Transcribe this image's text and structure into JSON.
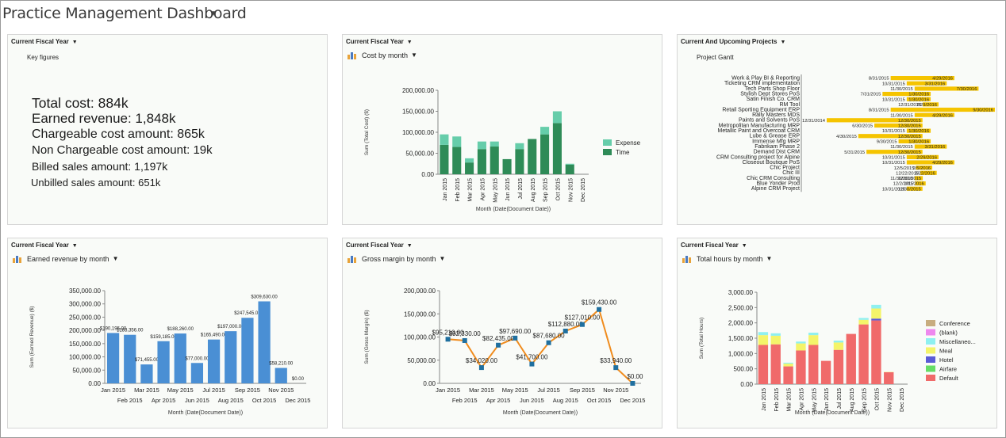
{
  "page": {
    "title": "Practice Management Dashboard"
  },
  "key_figures": {
    "filter": "Current Fiscal Year",
    "subtitle": "Key figures",
    "lines": [
      "Total cost: 884k",
      "Earned revenue: 1,848k",
      "Chargeable cost amount: 865k",
      "Non Chargeable cost amount: 19k",
      "Billed sales amount: 1,197k",
      "Unbilled sales amount: 651k"
    ]
  },
  "cost_panel": {
    "filter": "Current Fiscal Year",
    "subtitle": "Cost by month"
  },
  "gantt_panel": {
    "filter": "Current And Upcoming Projects",
    "subtitle": "Project Gantt"
  },
  "revenue_panel": {
    "filter": "Current Fiscal Year",
    "subtitle": "Earned revenue by month"
  },
  "margin_panel": {
    "filter": "Current Fiscal Year",
    "subtitle": "Gross margin by month"
  },
  "hours_panel": {
    "filter": "Current Fiscal Year",
    "subtitle": "Total hours by month"
  },
  "chart_data": [
    {
      "id": "cost",
      "type": "bar",
      "stacked": true,
      "ylabel": "Sum (Total Cost) ($)",
      "xlabel": "Month (Date(Document Date))",
      "ylim": [
        0,
        200000
      ],
      "yticks": [
        "0.00",
        "50,000.00",
        "100,000.00",
        "150,000.00",
        "200,000.00"
      ],
      "categories": [
        "Jan 2015",
        "Feb 2015",
        "Mar 2015",
        "Apr 2015",
        "May 2015",
        "Jun 2015",
        "Jul 2015",
        "Aug 2015",
        "Sep 2015",
        "Oct 2015",
        "Nov 2015",
        "Dec 2015"
      ],
      "series": [
        {
          "name": "Time",
          "color": "#2e8b57",
          "values": [
            70000,
            65000,
            28000,
            60000,
            66000,
            36000,
            60000,
            84000,
            95000,
            122000,
            23000,
            0
          ]
        },
        {
          "name": "Expense",
          "color": "#66cdaa",
          "values": [
            25000,
            25000,
            10000,
            18000,
            12000,
            0,
            14000,
            0,
            18000,
            28000,
            2000,
            0
          ]
        }
      ],
      "legend_position": "right"
    },
    {
      "id": "gantt",
      "type": "gantt",
      "rows": [
        {
          "name": "Work & Play BI & Reporting",
          "start": "8/31/2015",
          "end": "4/29/2016"
        },
        {
          "name": "Ticketing CRM implementation",
          "start": "10/31/2015",
          "end": "3/31/2016"
        },
        {
          "name": "Tech Parts Shop Floor",
          "start": "11/30/2015",
          "end": "7/30/2016"
        },
        {
          "name": "Stylish Dept Stores PoS",
          "start": "7/31/2015",
          "end": "1/30/2016"
        },
        {
          "name": "Satin Finish Co. CRM",
          "start": "10/31/2015",
          "end": "1/30/2016"
        },
        {
          "name": "RM Tool",
          "start": "12/31/2015",
          "end": "2/29/2016"
        },
        {
          "name": "Retail Sporting Equipment ERP",
          "start": "8/31/2015",
          "end": "9/30/2016"
        },
        {
          "name": "Rally Masters MDS",
          "start": "11/30/2015",
          "end": "4/29/2016"
        },
        {
          "name": "Paints and Solvents PoS",
          "start": "12/31/2014",
          "end": "12/30/2015"
        },
        {
          "name": "Metropolitan Manufacturing MRP",
          "start": "6/30/2015",
          "end": "12/30/2015"
        },
        {
          "name": "Metallic Paint and Overcoat CRM",
          "start": "10/31/2015",
          "end": "1/30/2016"
        },
        {
          "name": "Lube & Grease ERP",
          "start": "4/30/2015",
          "end": "12/30/2015"
        },
        {
          "name": "Immense Mfg MRP",
          "start": "9/30/2015",
          "end": "1/30/2016"
        },
        {
          "name": "Fabrikam Phase 2",
          "start": "11/30/2015",
          "end": "3/31/2016"
        },
        {
          "name": "Demand Dist CRM",
          "start": "5/31/2015",
          "end": "12/30/2015"
        },
        {
          "name": "CRM Consulting project for Alpine",
          "start": "10/31/2015",
          "end": "2/29/2016"
        },
        {
          "name": "Closeout Boutique PoS",
          "start": "10/31/2015",
          "end": "4/29/2016"
        },
        {
          "name": "Chic Project",
          "start": "12/5/2015",
          "end": "2/5/2016"
        },
        {
          "name": "Chic III",
          "start": "12/22/2015",
          "end": "2/22/2016"
        },
        {
          "name": "Chic CRM  Consulting",
          "start": "11/30/2015",
          "end": "12/31/2015"
        },
        {
          "name": "Blue Yonder Prod",
          "start": "12/2/2015",
          "end": "1/11/2016"
        },
        {
          "name": "Alpine CRM Project",
          "start": "10/31/2015",
          "end": "12/30/2015"
        }
      ]
    },
    {
      "id": "revenue",
      "type": "bar",
      "ylabel": "Sum (Earned Revenue) ($)",
      "xlabel": "Month (Date(Document Date))",
      "ylim": [
        0,
        350000
      ],
      "yticks": [
        "0.00",
        "50,000.00",
        "100,000.00",
        "150,000.00",
        "200,000.00",
        "250,000.00",
        "300,000.00",
        "350,000.00"
      ],
      "categories": [
        "Jan 2015",
        "Feb 2015",
        "Mar 2015",
        "Apr 2015",
        "May 2015",
        "Jun 2015",
        "Jul 2015",
        "Aug 2015",
        "Sep 2015",
        "Oct 2015",
        "Nov 2015",
        "Dec 2015"
      ],
      "values": [
        190195,
        183356,
        71455,
        159185,
        188260,
        77000,
        165490,
        197000,
        247545,
        309630,
        58210,
        0
      ],
      "labels": [
        "$190,195.00",
        "$183,356.00",
        "$71,455.00",
        "$159,185.00",
        "$188,260.00",
        "$77,000.00",
        "$165,490.00",
        "$197,000.00",
        "$247,545.00",
        "$309,630.00",
        "$58,210.00",
        "$0.00"
      ],
      "color": "#4a8fd4"
    },
    {
      "id": "margin",
      "type": "line",
      "ylabel": "Sum (Gross Margin) ($)",
      "xlabel": "Month (Date(Document Date))",
      "ylim": [
        0,
        200000
      ],
      "yticks": [
        "0.00",
        "50,000.00",
        "100,000.00",
        "150,000.00",
        "200,000.00"
      ],
      "categories": [
        "Jan 2015",
        "Feb 2015",
        "Mar 2015",
        "Apr 2015",
        "May 2015",
        "Jun 2015",
        "Jul 2015",
        "Aug 2015",
        "Sep 2015",
        "Oct 2015",
        "Nov 2015",
        "Dec 2015"
      ],
      "values": [
        95210,
        92330,
        34020,
        82435,
        97690,
        41700,
        87680,
        112880,
        127010,
        159430,
        33940,
        0
      ],
      "labels": [
        "$95,210.00",
        "$92,330.00",
        "$34,020.00",
        "$82,435.00",
        "$97,690.00",
        "$41,700.00",
        "$87,680.00",
        "$112,880.00",
        "$127,010.00",
        "$159,430.00",
        "$33,940.00",
        "$0.00"
      ],
      "line_color": "#f08c1e",
      "marker_color": "#1f6f9f"
    },
    {
      "id": "hours",
      "type": "bar",
      "stacked": true,
      "ylabel": "Sum (Total Hours)",
      "xlabel": "Month (Date(Document Date))",
      "ylim": [
        0,
        3000
      ],
      "yticks": [
        "0.00",
        "500.00",
        "1,000.00",
        "1,500.00",
        "2,000.00",
        "2,500.00",
        "3,000.00"
      ],
      "categories": [
        "Jan 2015",
        "Feb 2015",
        "Mar 2015",
        "Apr 2015",
        "May 2015",
        "Jun 2015",
        "Jul 2015",
        "Aug 2015",
        "Sep 2015",
        "Oct 2015",
        "Nov 2015",
        "Dec 2015"
      ],
      "series": [
        {
          "name": "Default",
          "color": "#f06a6a",
          "values": [
            1280,
            1300,
            580,
            1100,
            1280,
            760,
            1120,
            1640,
            1950,
            2080,
            390,
            0
          ]
        },
        {
          "name": "Airfare",
          "color": "#66dd66",
          "values": [
            0,
            0,
            0,
            0,
            0,
            0,
            0,
            0,
            0,
            0,
            0,
            0
          ]
        },
        {
          "name": "Hotel",
          "color": "#5b5bd6",
          "values": [
            0,
            0,
            0,
            0,
            0,
            0,
            0,
            0,
            0,
            60,
            0,
            0
          ]
        },
        {
          "name": "Meal",
          "color": "#f4f46a",
          "values": [
            320,
            280,
            90,
            230,
            320,
            0,
            240,
            0,
            150,
            330,
            10,
            0
          ]
        },
        {
          "name": "Miscellaneo...",
          "color": "#8ff0f0",
          "values": [
            100,
            80,
            30,
            60,
            80,
            0,
            60,
            0,
            60,
            120,
            0,
            0
          ]
        },
        {
          "name": "(blank)",
          "color": "#ee88ee",
          "values": [
            0,
            0,
            0,
            0,
            0,
            0,
            0,
            0,
            0,
            0,
            0,
            0
          ]
        },
        {
          "name": "Conference",
          "color": "#c8ad7f",
          "values": [
            0,
            0,
            0,
            0,
            0,
            0,
            0,
            0,
            0,
            0,
            0,
            0
          ]
        }
      ],
      "legend_position": "right"
    }
  ]
}
